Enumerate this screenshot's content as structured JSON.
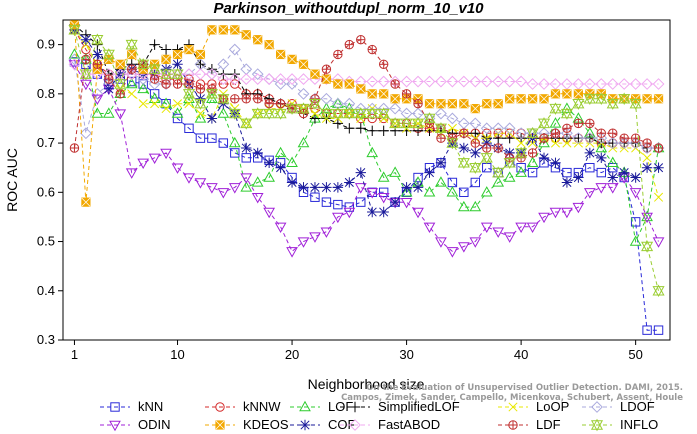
{
  "chart_data": {
    "type": "line",
    "title": "Parkinson_withoutdupl_norm_10_v10",
    "xlabel": "Neighborhood size",
    "ylabel": "ROC AUC",
    "xlim": [
      0,
      53
    ],
    "ylim": [
      0.3,
      0.95
    ],
    "xticks": [
      1,
      10,
      20,
      30,
      40,
      50
    ],
    "yticks": [
      0.3,
      0.4,
      0.5,
      0.6,
      0.7,
      0.8,
      0.9
    ],
    "x": [
      1,
      2,
      3,
      4,
      5,
      6,
      7,
      8,
      9,
      10,
      11,
      12,
      13,
      14,
      15,
      16,
      17,
      18,
      19,
      20,
      21,
      22,
      23,
      24,
      25,
      26,
      27,
      28,
      29,
      30,
      31,
      32,
      33,
      34,
      35,
      36,
      37,
      38,
      39,
      40,
      41,
      42,
      43,
      44,
      45,
      46,
      47,
      48,
      49,
      50,
      51,
      52
    ],
    "series": [
      {
        "name": "kNN",
        "color": "#2a2ad8",
        "marker": "square",
        "values": [
          0.865,
          0.86,
          0.84,
          0.82,
          0.83,
          0.825,
          0.82,
          0.8,
          0.78,
          0.75,
          0.73,
          0.71,
          0.71,
          0.7,
          0.68,
          0.67,
          0.67,
          0.665,
          0.66,
          0.63,
          0.6,
          0.59,
          0.58,
          0.575,
          0.57,
          0.58,
          0.6,
          0.6,
          0.58,
          0.6,
          0.63,
          0.65,
          0.66,
          0.62,
          0.6,
          0.62,
          0.65,
          0.64,
          0.66,
          0.65,
          0.64,
          0.66,
          0.65,
          0.64,
          0.64,
          0.65,
          0.64,
          0.65,
          0.63,
          0.54,
          0.32,
          0.32
        ]
      },
      {
        "name": "kNNW",
        "color": "#d42a2a",
        "marker": "circle",
        "values": [
          0.93,
          0.89,
          0.86,
          0.84,
          0.84,
          0.84,
          0.84,
          0.84,
          0.83,
          0.83,
          0.83,
          0.82,
          0.82,
          0.82,
          0.82,
          0.8,
          0.8,
          0.79,
          0.78,
          0.78,
          0.77,
          0.77,
          0.76,
          0.76,
          0.76,
          0.75,
          0.75,
          0.75,
          0.74,
          0.74,
          0.73,
          0.73,
          0.73,
          0.72,
          0.72,
          0.72,
          0.72,
          0.72,
          0.72,
          0.72,
          0.71,
          0.71,
          0.71,
          0.71,
          0.71,
          0.71,
          0.7,
          0.7,
          0.7,
          0.7,
          0.69,
          0.69
        ]
      },
      {
        "name": "LOF",
        "color": "#2ecc2e",
        "marker": "triangle-up",
        "values": [
          0.88,
          0.87,
          0.76,
          0.76,
          0.8,
          0.82,
          0.81,
          0.79,
          0.78,
          0.76,
          0.79,
          0.75,
          0.79,
          0.76,
          0.7,
          0.61,
          0.62,
          0.63,
          0.68,
          0.66,
          0.7,
          0.75,
          0.77,
          0.78,
          0.77,
          0.76,
          0.68,
          0.63,
          0.64,
          0.6,
          0.62,
          0.6,
          0.62,
          0.6,
          0.57,
          0.57,
          0.6,
          0.62,
          0.63,
          0.64,
          0.66,
          0.7,
          0.74,
          0.77,
          0.75,
          0.72,
          0.69,
          0.66,
          0.64,
          0.5,
          0.55,
          0.69
        ]
      },
      {
        "name": "SimplifiedLOF",
        "color": "#000000",
        "marker": "plus",
        "values": [
          0.94,
          0.92,
          0.9,
          0.84,
          0.85,
          0.86,
          0.86,
          0.9,
          0.89,
          0.89,
          0.9,
          0.86,
          0.85,
          0.84,
          0.84,
          0.8,
          0.8,
          0.79,
          0.78,
          0.77,
          0.76,
          0.75,
          0.75,
          0.74,
          0.73,
          0.73,
          0.725,
          0.725,
          0.725,
          0.725,
          0.725,
          0.725,
          0.725,
          0.72,
          0.72,
          0.72,
          0.71,
          0.71,
          0.71,
          0.71,
          0.71,
          0.71,
          0.71,
          0.71,
          0.71,
          0.71,
          0.7,
          0.7,
          0.7,
          0.7,
          0.69,
          0.69
        ]
      },
      {
        "name": "LoOP",
        "color": "#e8e800",
        "marker": "cross",
        "values": [
          0.93,
          0.9,
          0.86,
          0.83,
          0.81,
          0.8,
          0.78,
          0.78,
          0.77,
          0.78,
          0.78,
          0.76,
          0.75,
          0.8,
          0.77,
          0.74,
          0.76,
          0.77,
          0.77,
          0.78,
          0.77,
          0.76,
          0.75,
          0.75,
          0.76,
          0.75,
          0.77,
          0.75,
          0.74,
          0.73,
          0.74,
          0.73,
          0.72,
          0.73,
          0.72,
          0.71,
          0.71,
          0.72,
          0.72,
          0.7,
          0.7,
          0.71,
          0.7,
          0.7,
          0.7,
          0.7,
          0.7,
          0.69,
          0.69,
          0.69,
          0.67,
          0.59
        ]
      },
      {
        "name": "LDOF",
        "color": "#aaaadd",
        "marker": "diamond",
        "values": [
          0.87,
          0.72,
          0.8,
          0.82,
          0.84,
          0.84,
          0.83,
          0.82,
          0.82,
          0.84,
          0.84,
          0.86,
          0.84,
          0.86,
          0.89,
          0.85,
          0.84,
          0.83,
          0.82,
          0.82,
          0.8,
          0.79,
          0.79,
          0.78,
          0.78,
          0.77,
          0.77,
          0.77,
          0.77,
          0.76,
          0.76,
          0.75,
          0.76,
          0.75,
          0.74,
          0.74,
          0.73,
          0.73,
          0.73,
          0.72,
          0.72,
          0.72,
          0.72,
          0.72,
          0.71,
          0.71,
          0.71,
          0.7,
          0.7,
          0.7,
          0.69,
          0.69
        ]
      },
      {
        "name": "ODIN",
        "color": "#a020d8",
        "marker": "triangle-down",
        "values": [
          0.86,
          0.82,
          0.79,
          0.81,
          0.76,
          0.64,
          0.66,
          0.67,
          0.68,
          0.65,
          0.63,
          0.62,
          0.61,
          0.6,
          0.61,
          0.63,
          0.59,
          0.56,
          0.53,
          0.48,
          0.5,
          0.51,
          0.52,
          0.55,
          0.56,
          0.61,
          0.6,
          0.59,
          0.58,
          0.58,
          0.56,
          0.53,
          0.5,
          0.48,
          0.49,
          0.5,
          0.53,
          0.52,
          0.51,
          0.53,
          0.53,
          0.55,
          0.56,
          0.56,
          0.57,
          0.6,
          0.61,
          0.61,
          0.63,
          0.6,
          0.55,
          0.5
        ]
      },
      {
        "name": "COF",
        "color": "#1a1a9a",
        "marker": "star",
        "values": [
          0.93,
          0.91,
          0.88,
          0.81,
          0.84,
          0.85,
          0.84,
          0.84,
          0.85,
          0.86,
          0.82,
          0.79,
          0.75,
          0.78,
          0.76,
          0.69,
          0.68,
          0.66,
          0.65,
          0.62,
          0.61,
          0.61,
          0.61,
          0.61,
          0.62,
          0.64,
          0.56,
          0.56,
          0.58,
          0.61,
          0.61,
          0.64,
          0.66,
          0.7,
          0.69,
          0.68,
          0.7,
          0.69,
          0.68,
          0.68,
          0.71,
          0.67,
          0.66,
          0.62,
          0.63,
          0.68,
          0.67,
          0.63,
          0.64,
          0.63,
          0.65,
          0.65
        ]
      },
      {
        "name": "FastABOD",
        "color": "#f0a8f0",
        "marker": "diamond",
        "values": [
          0.86,
          0.84,
          0.84,
          0.84,
          0.84,
          0.84,
          0.84,
          0.84,
          0.84,
          0.84,
          0.84,
          0.84,
          0.84,
          0.83,
          0.83,
          0.83,
          0.83,
          0.83,
          0.83,
          0.83,
          0.83,
          0.83,
          0.83,
          0.83,
          0.825,
          0.825,
          0.825,
          0.825,
          0.825,
          0.825,
          0.825,
          0.825,
          0.825,
          0.825,
          0.825,
          0.825,
          0.825,
          0.825,
          0.825,
          0.825,
          0.82,
          0.82,
          0.82,
          0.82,
          0.82,
          0.82,
          0.82,
          0.82,
          0.82,
          0.82,
          0.82,
          0.82
        ]
      },
      {
        "name": "KDEOS",
        "color": "#f2a800",
        "marker": "square-filled",
        "values": [
          0.94,
          0.58,
          0.85,
          0.87,
          0.86,
          0.88,
          0.85,
          0.86,
          0.87,
          0.88,
          0.89,
          0.88,
          0.93,
          0.93,
          0.93,
          0.92,
          0.91,
          0.9,
          0.88,
          0.87,
          0.86,
          0.84,
          0.83,
          0.82,
          0.82,
          0.81,
          0.8,
          0.8,
          0.79,
          0.79,
          0.79,
          0.78,
          0.78,
          0.78,
          0.78,
          0.77,
          0.78,
          0.78,
          0.79,
          0.79,
          0.79,
          0.79,
          0.8,
          0.8,
          0.8,
          0.8,
          0.8,
          0.79,
          0.79,
          0.79,
          0.79,
          0.79
        ]
      },
      {
        "name": "LDF",
        "color": "#c03030",
        "marker": "circle-plus",
        "values": [
          0.69,
          0.87,
          0.86,
          0.83,
          0.8,
          0.85,
          0.86,
          0.83,
          0.82,
          0.82,
          0.82,
          0.81,
          0.81,
          0.79,
          0.79,
          0.79,
          0.79,
          0.78,
          0.78,
          0.77,
          0.76,
          0.79,
          0.85,
          0.88,
          0.9,
          0.91,
          0.89,
          0.86,
          0.82,
          0.8,
          0.78,
          0.74,
          0.71,
          0.71,
          0.72,
          0.7,
          0.69,
          0.69,
          0.67,
          0.67,
          0.68,
          0.71,
          0.72,
          0.73,
          0.74,
          0.74,
          0.72,
          0.72,
          0.71,
          0.71,
          0.7,
          0.69
        ]
      },
      {
        "name": "INFLO",
        "color": "#9acd32",
        "marker": "hex",
        "values": [
          0.93,
          0.84,
          0.91,
          0.88,
          0.82,
          0.9,
          0.86,
          0.85,
          0.84,
          0.84,
          0.8,
          0.78,
          0.8,
          0.79,
          0.76,
          0.74,
          0.76,
          0.76,
          0.76,
          0.77,
          0.77,
          0.78,
          0.76,
          0.76,
          0.76,
          0.76,
          0.76,
          0.76,
          0.74,
          0.74,
          0.74,
          0.75,
          0.73,
          0.7,
          0.66,
          0.65,
          0.67,
          0.64,
          0.66,
          0.68,
          0.72,
          0.74,
          0.77,
          0.76,
          0.78,
          0.79,
          0.79,
          0.78,
          0.79,
          0.78,
          0.49,
          0.4
        ]
      }
    ],
    "grid": false,
    "legend_position": "bottom",
    "annotation": [
      "Campos, Zimek, Sander, Campello, Micenkova, Schubert, Assent, Houle",
      "On the Evaluation of Unsupervised Outlier Detection. DAMI, 2015."
    ]
  }
}
